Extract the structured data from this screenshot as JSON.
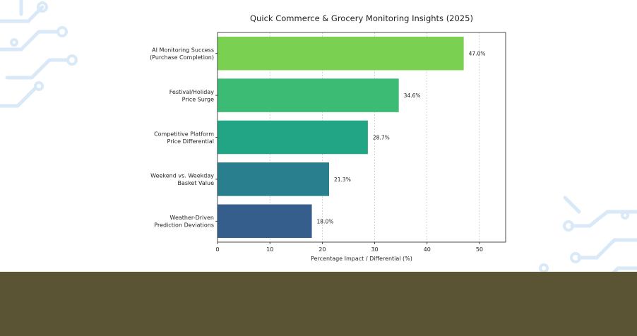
{
  "chart_data": {
    "type": "bar",
    "orientation": "horizontal",
    "title": "Quick Commerce & Grocery Monitoring Insights (2025)",
    "xlabel": "Percentage Impact / Differential (%)",
    "ylabel": "",
    "xlim": [
      0,
      55
    ],
    "xticks": [
      0,
      10,
      20,
      30,
      40,
      50
    ],
    "grid": "vertical dashed",
    "categories": [
      [
        "AI Monitoring Success",
        "(Purchase Completion)"
      ],
      [
        "Festival/Holiday",
        "Price Surge"
      ],
      [
        "Competitive Platform",
        "Price Differential"
      ],
      [
        "Weekend vs. Weekday",
        "Basket Value"
      ],
      [
        "Weather-Driven",
        "Prediction Deviations"
      ]
    ],
    "values": [
      47.0,
      34.6,
      28.7,
      21.3,
      18.0
    ],
    "value_labels": [
      "47.0%",
      "34.6%",
      "28.7%",
      "21.3%",
      "18.0%"
    ],
    "colors": [
      "#7ad151",
      "#3cbb75",
      "#21a585",
      "#2a7f8e",
      "#355e8d"
    ]
  },
  "theme": {
    "footer_color": "#5b5434",
    "decor_color": "#d9e9f7"
  }
}
